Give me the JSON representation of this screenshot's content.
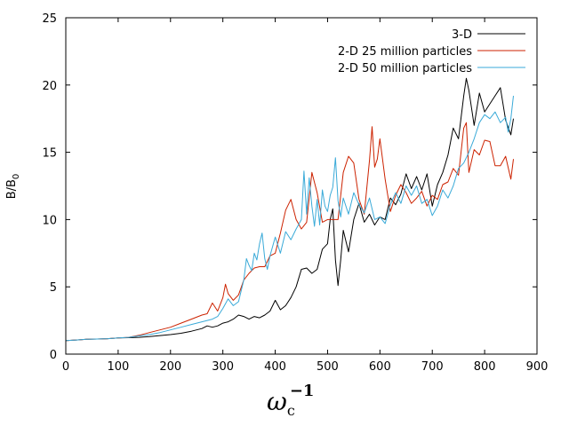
{
  "chart_data": {
    "type": "line",
    "title": "",
    "xlabel": {
      "base": "ω",
      "subscript": "c",
      "superscript": "−1"
    },
    "ylabel": {
      "base": "B/B",
      "subscript": "0"
    },
    "xlim": [
      0,
      900
    ],
    "ylim": [
      0,
      25
    ],
    "xticks": [
      "0",
      "100",
      "200",
      "300",
      "400",
      "500",
      "600",
      "700",
      "800",
      "900"
    ],
    "yticks": [
      "0",
      "5",
      "10",
      "15",
      "20",
      "25"
    ],
    "xtick_values": [
      0,
      100,
      200,
      300,
      400,
      500,
      600,
      700,
      800,
      900
    ],
    "ytick_values": [
      0,
      5,
      10,
      15,
      20,
      25
    ],
    "legend_position": "top-right",
    "series": [
      {
        "name": "3-D",
        "color": "#000000",
        "x": [
          0,
          20,
          40,
          60,
          80,
          100,
          120,
          140,
          160,
          180,
          200,
          220,
          240,
          260,
          270,
          280,
          290,
          300,
          310,
          320,
          330,
          340,
          350,
          360,
          370,
          380,
          390,
          400,
          410,
          420,
          430,
          440,
          450,
          460,
          470,
          480,
          490,
          500,
          505,
          510,
          515,
          520,
          525,
          530,
          540,
          550,
          560,
          570,
          580,
          590,
          600,
          610,
          620,
          630,
          640,
          650,
          660,
          670,
          680,
          690,
          700,
          710,
          720,
          730,
          740,
          750,
          760,
          765,
          770,
          780,
          790,
          800,
          810,
          820,
          830,
          840,
          850,
          855
        ],
        "values": [
          1.0,
          1.05,
          1.1,
          1.12,
          1.15,
          1.2,
          1.22,
          1.25,
          1.3,
          1.38,
          1.45,
          1.55,
          1.7,
          1.9,
          2.1,
          2.0,
          2.1,
          2.3,
          2.4,
          2.6,
          2.9,
          2.8,
          2.6,
          2.8,
          2.7,
          2.9,
          3.2,
          4.0,
          3.3,
          3.6,
          4.2,
          5.0,
          6.3,
          6.4,
          6.0,
          6.3,
          7.8,
          8.2,
          10.0,
          10.8,
          7.0,
          5.1,
          7.0,
          9.2,
          7.6,
          10.0,
          11.2,
          9.8,
          10.4,
          9.6,
          10.2,
          10.0,
          11.6,
          11.1,
          11.9,
          13.4,
          12.3,
          13.2,
          12.2,
          13.4,
          11.0,
          12.6,
          13.5,
          14.8,
          16.8,
          16.0,
          19.2,
          20.5,
          19.6,
          17.0,
          19.4,
          18.0,
          18.6,
          19.2,
          19.8,
          17.4,
          16.3,
          17.5
        ]
      },
      {
        "name": "2-D 25 million particles",
        "color": "#cc2200",
        "x": [
          0,
          20,
          40,
          60,
          80,
          100,
          120,
          140,
          160,
          170,
          180,
          200,
          220,
          240,
          260,
          270,
          280,
          290,
          300,
          305,
          310,
          320,
          330,
          340,
          350,
          360,
          370,
          380,
          390,
          400,
          410,
          420,
          430,
          440,
          450,
          460,
          470,
          480,
          490,
          500,
          510,
          520,
          530,
          540,
          550,
          560,
          570,
          580,
          585,
          590,
          595,
          600,
          610,
          620,
          630,
          640,
          650,
          660,
          670,
          680,
          690,
          700,
          710,
          720,
          730,
          740,
          750,
          760,
          765,
          770,
          780,
          790,
          800,
          810,
          820,
          830,
          840,
          850,
          855
        ],
        "values": [
          1.0,
          1.05,
          1.1,
          1.12,
          1.15,
          1.2,
          1.25,
          1.4,
          1.6,
          1.7,
          1.8,
          2.0,
          2.3,
          2.6,
          2.9,
          3.0,
          3.8,
          3.2,
          4.2,
          5.2,
          4.5,
          4.0,
          4.4,
          5.5,
          6.0,
          6.4,
          6.5,
          6.5,
          7.3,
          7.5,
          9.0,
          10.7,
          11.5,
          10.0,
          9.3,
          9.8,
          13.5,
          12.0,
          9.8,
          10.0,
          10.0,
          10.0,
          13.5,
          14.7,
          14.2,
          11.5,
          10.4,
          14.4,
          16.9,
          13.9,
          14.5,
          16.0,
          13.0,
          10.6,
          11.8,
          12.6,
          12.0,
          11.2,
          11.6,
          12.1,
          11.0,
          11.8,
          11.5,
          12.6,
          12.8,
          13.8,
          13.3,
          16.8,
          17.2,
          13.5,
          15.2,
          14.8,
          15.9,
          15.8,
          14.0,
          14.0,
          14.7,
          13.0,
          14.5
        ]
      },
      {
        "name": "2-D 50 million particles",
        "color": "#3aaad8",
        "x": [
          0,
          20,
          40,
          60,
          80,
          100,
          120,
          140,
          160,
          180,
          200,
          220,
          240,
          260,
          280,
          290,
          300,
          310,
          320,
          330,
          340,
          345,
          350,
          355,
          360,
          365,
          370,
          375,
          380,
          385,
          390,
          400,
          410,
          420,
          430,
          440,
          450,
          455,
          460,
          465,
          470,
          475,
          480,
          485,
          490,
          495,
          500,
          505,
          510,
          515,
          520,
          525,
          530,
          540,
          550,
          560,
          570,
          580,
          590,
          600,
          610,
          620,
          630,
          640,
          650,
          660,
          670,
          680,
          690,
          700,
          710,
          720,
          730,
          740,
          750,
          760,
          770,
          780,
          790,
          800,
          810,
          820,
          830,
          840,
          845,
          850,
          855
        ],
        "values": [
          1.0,
          1.05,
          1.1,
          1.12,
          1.15,
          1.2,
          1.25,
          1.35,
          1.45,
          1.6,
          1.8,
          2.0,
          2.2,
          2.4,
          2.6,
          2.8,
          3.4,
          4.1,
          3.6,
          3.9,
          5.5,
          7.1,
          6.6,
          6.2,
          7.5,
          7.0,
          8.2,
          9.0,
          7.1,
          6.3,
          7.3,
          8.7,
          7.5,
          9.1,
          8.5,
          9.3,
          10.0,
          13.6,
          10.4,
          13.1,
          11.0,
          9.5,
          11.5,
          9.6,
          12.2,
          11.0,
          10.6,
          11.8,
          12.4,
          14.6,
          11.4,
          10.2,
          11.6,
          10.4,
          12.0,
          11.1,
          10.5,
          11.6,
          10.0,
          10.2,
          9.7,
          11.1,
          12.0,
          11.2,
          12.5,
          11.8,
          12.5,
          11.2,
          11.5,
          10.3,
          11.0,
          12.2,
          11.6,
          12.5,
          13.8,
          14.2,
          15.0,
          16.0,
          17.2,
          17.8,
          17.5,
          18.0,
          17.2,
          17.6,
          16.5,
          17.5,
          19.2
        ]
      }
    ]
  }
}
